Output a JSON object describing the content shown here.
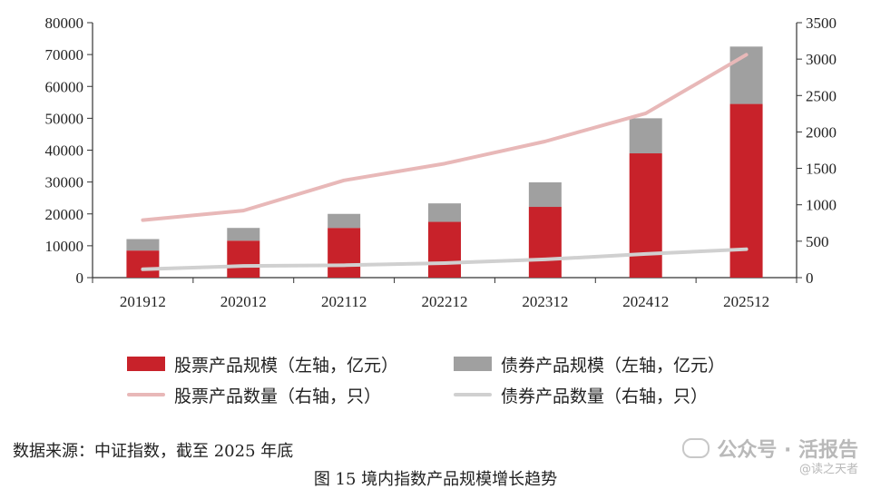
{
  "chart_data": {
    "type": "bar",
    "stacked": true,
    "categories": [
      "201912",
      "202012",
      "202112",
      "202212",
      "202312",
      "202412",
      "202512"
    ],
    "series": [
      {
        "name": "股票产品规模（左轴，亿元）",
        "axis": "left",
        "kind": "bar",
        "color": "#c8222a",
        "values": [
          8500,
          11600,
          15600,
          17500,
          22200,
          39000,
          54500
        ]
      },
      {
        "name": "债券产品规模（左轴，亿元）",
        "axis": "left",
        "kind": "bar",
        "color": "#a0a0a0",
        "values": [
          3600,
          4000,
          4400,
          5800,
          7700,
          11000,
          18000
        ]
      },
      {
        "name": "股票产品数量（右轴，只）",
        "axis": "right",
        "kind": "line",
        "color": "#e8b8b8",
        "values": [
          790,
          920,
          1335,
          1565,
          1870,
          2255,
          3060
        ]
      },
      {
        "name": "债券产品数量（右轴，只）",
        "axis": "right",
        "kind": "line",
        "color": "#d0d0d0",
        "values": [
          115,
          160,
          170,
          200,
          250,
          325,
          390
        ]
      }
    ],
    "y_left": {
      "min": 0,
      "max": 80000,
      "ticks": [
        0,
        10000,
        20000,
        30000,
        40000,
        50000,
        60000,
        70000,
        80000
      ]
    },
    "y_right": {
      "min": 0,
      "max": 3500,
      "ticks": [
        0,
        500,
        1000,
        1500,
        2000,
        2500,
        3000,
        3500
      ]
    },
    "legend_placement": "bottom",
    "grid": false
  },
  "legend": {
    "stock_scale": "股票产品规模（左轴，亿元）",
    "bond_scale": "债券产品规模（左轴，亿元）",
    "stock_count": "股票产品数量（右轴，只）",
    "bond_count": "债券产品数量（右轴，只）"
  },
  "source": "数据来源：中证指数，截至 2025 年底",
  "caption": "图 15  境内指数产品规模增长趋势",
  "watermark": {
    "text": "公众号 · 活报告",
    "sub": "@读之天者"
  }
}
